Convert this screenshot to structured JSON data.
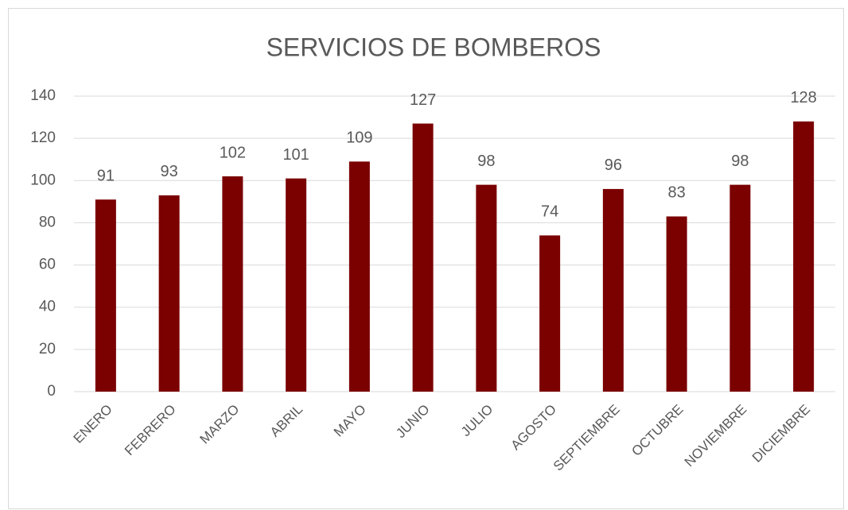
{
  "chart_data": {
    "type": "bar",
    "title": "SERVICIOS DE BOMBEROS",
    "categories": [
      "ENERO",
      "FEBRERO",
      "MARZO",
      "ABRIL",
      "MAYO",
      "JUNIO",
      "JULIO",
      "AGOSTO",
      "SEPTIEMBRE",
      "OCTUBRE",
      "NOVIEMBRE",
      "DICIEMBRE"
    ],
    "values": [
      91,
      93,
      102,
      101,
      109,
      127,
      98,
      74,
      96,
      83,
      98,
      128
    ],
    "color": "#7b0000",
    "ylim": [
      0,
      140
    ],
    "yticks": [
      0,
      20,
      40,
      60,
      80,
      100,
      120,
      140
    ],
    "grid": true,
    "data_labels": true
  }
}
